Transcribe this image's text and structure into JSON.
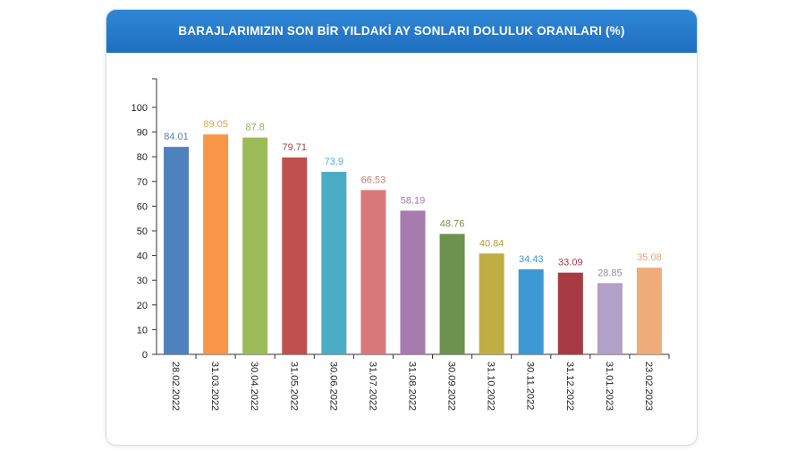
{
  "chart_data": {
    "type": "bar",
    "title": "BARAJLARIMIZIN SON BİR YILDAKİ AY SONLARI DOLULUK ORANLARI (%)",
    "categories": [
      "28.02.2022",
      "31.03.2022",
      "30.04.2022",
      "31.05.2022",
      "30.06.2022",
      "31.07.2022",
      "31.08.2022",
      "30.09.2022",
      "31.10.2022",
      "30.11.2022",
      "31.12.2022",
      "31.01.2023",
      "23.02.2023"
    ],
    "values": [
      84.01,
      89.05,
      87.8,
      79.71,
      73.9,
      66.53,
      58.19,
      48.76,
      40.84,
      34.43,
      33.09,
      28.85,
      35.08
    ],
    "value_labels": [
      "84.01",
      "89.05",
      "87.8",
      "79.71",
      "73.9",
      "66.53",
      "58.19",
      "48.76",
      "40.84",
      "34.43",
      "33.09",
      "28.85",
      "35.08"
    ],
    "bar_colors": [
      "#4f81bd",
      "#f79646",
      "#9bbb59",
      "#c0504d",
      "#4bacc6",
      "#d9787a",
      "#a77bae",
      "#6d9250",
      "#bfae43",
      "#3d99d4",
      "#a83a43",
      "#b1a0c7",
      "#f0ab7a"
    ],
    "label_colors": [
      "#4f81bd",
      "#e3a254",
      "#8fae58",
      "#a0494a",
      "#4bacc6",
      "#c77775",
      "#9f7aa9",
      "#7e8f45",
      "#b39f3a",
      "#3d99d4",
      "#a83a43",
      "#8e8e8e",
      "#e8a470"
    ],
    "yticks": [
      0,
      10,
      20,
      30,
      40,
      50,
      60,
      70,
      80,
      90,
      100
    ],
    "ylim": [
      0,
      100
    ],
    "xlabel": "",
    "ylabel": "",
    "grid": false,
    "legend": "none"
  }
}
